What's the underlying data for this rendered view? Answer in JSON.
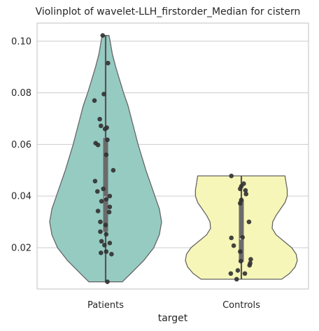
{
  "chart_data": {
    "type": "violin",
    "title": "Violinplot of wavelet-LLH_firstorder_Median for cistern",
    "xlabel": "target",
    "ylabel": "",
    "ylim": [
      0.004,
      0.107
    ],
    "yticks": [
      "0.02",
      "0.04",
      "0.06",
      "0.08",
      "0.10"
    ],
    "grid": true,
    "categories": [
      "Patients",
      "Controls"
    ],
    "series": [
      {
        "category": "Patients",
        "color": "#96cbc2",
        "min": 0.0068,
        "max": 0.1022,
        "q1": 0.0262,
        "median": 0.0395,
        "q3": 0.0625,
        "density": [
          [
            0.0068,
            0.3
          ],
          [
            0.01,
            0.45
          ],
          [
            0.015,
            0.68
          ],
          [
            0.02,
            0.86
          ],
          [
            0.025,
            0.96
          ],
          [
            0.03,
            1.0
          ],
          [
            0.035,
            0.96
          ],
          [
            0.04,
            0.88
          ],
          [
            0.045,
            0.8
          ],
          [
            0.05,
            0.72
          ],
          [
            0.055,
            0.65
          ],
          [
            0.06,
            0.58
          ],
          [
            0.065,
            0.52
          ],
          [
            0.07,
            0.46
          ],
          [
            0.075,
            0.4
          ],
          [
            0.08,
            0.32
          ],
          [
            0.085,
            0.25
          ],
          [
            0.09,
            0.18
          ],
          [
            0.095,
            0.12
          ],
          [
            0.1,
            0.08
          ],
          [
            0.1022,
            0.06
          ]
        ],
        "points": [
          [
            -0.05,
            0.1022
          ],
          [
            0.04,
            0.0915
          ],
          [
            -0.03,
            0.0795
          ],
          [
            -0.19,
            0.077
          ],
          [
            -0.1,
            0.0698
          ],
          [
            -0.08,
            0.0672
          ],
          [
            -0.01,
            0.066
          ],
          [
            0.02,
            0.0665
          ],
          [
            -0.17,
            0.0605
          ],
          [
            -0.13,
            0.0598
          ],
          [
            0.03,
            0.0618
          ],
          [
            0.01,
            0.056
          ],
          [
            0.13,
            0.05
          ],
          [
            -0.18,
            0.0458
          ],
          [
            -0.14,
            0.0418
          ],
          [
            -0.04,
            0.0428
          ],
          [
            0.07,
            0.04
          ],
          [
            -0.07,
            0.038
          ],
          [
            0.01,
            0.0388
          ],
          [
            0.07,
            0.0358
          ],
          [
            -0.13,
            0.0342
          ],
          [
            0.06,
            0.0338
          ],
          [
            -0.09,
            0.03
          ],
          [
            0.0,
            0.0288
          ],
          [
            -0.09,
            0.0262
          ],
          [
            0.01,
            0.0252
          ],
          [
            -0.07,
            0.0225
          ],
          [
            -0.02,
            0.021
          ],
          [
            0.07,
            0.0218
          ],
          [
            -0.08,
            0.018
          ],
          [
            0.01,
            0.0185
          ],
          [
            0.1,
            0.0175
          ],
          [
            0.03,
            0.0068
          ]
        ]
      },
      {
        "category": "Controls",
        "color": "#f6f6b8",
        "min": 0.0078,
        "max": 0.0478,
        "q1": 0.0145,
        "median": 0.0235,
        "q3": 0.0385,
        "density": [
          [
            0.0078,
            0.72
          ],
          [
            0.01,
            0.86
          ],
          [
            0.0125,
            0.96
          ],
          [
            0.015,
            1.0
          ],
          [
            0.0175,
            0.98
          ],
          [
            0.02,
            0.9
          ],
          [
            0.0225,
            0.76
          ],
          [
            0.025,
            0.62
          ],
          [
            0.0275,
            0.55
          ],
          [
            0.03,
            0.56
          ],
          [
            0.0325,
            0.62
          ],
          [
            0.035,
            0.7
          ],
          [
            0.0375,
            0.78
          ],
          [
            0.04,
            0.82
          ],
          [
            0.0425,
            0.82
          ],
          [
            0.045,
            0.8
          ],
          [
            0.0478,
            0.78
          ]
        ],
        "points": [
          [
            -0.17,
            0.0478
          ],
          [
            0.0,
            0.0438
          ],
          [
            0.04,
            0.0448
          ],
          [
            -0.02,
            0.0428
          ],
          [
            0.07,
            0.0422
          ],
          [
            0.08,
            0.0408
          ],
          [
            -0.02,
            0.0372
          ],
          [
            0.0,
            0.0385
          ],
          [
            0.13,
            0.03
          ],
          [
            -0.17,
            0.0238
          ],
          [
            0.02,
            0.024
          ],
          [
            -0.13,
            0.0208
          ],
          [
            -0.02,
            0.0185
          ],
          [
            0.16,
            0.0155
          ],
          [
            0.15,
            0.014
          ],
          [
            -0.01,
            0.0148
          ],
          [
            0.14,
            0.0132
          ],
          [
            -0.06,
            0.0112
          ],
          [
            -0.18,
            0.01
          ],
          [
            0.06,
            0.01
          ],
          [
            -0.08,
            0.0078
          ]
        ]
      }
    ]
  }
}
